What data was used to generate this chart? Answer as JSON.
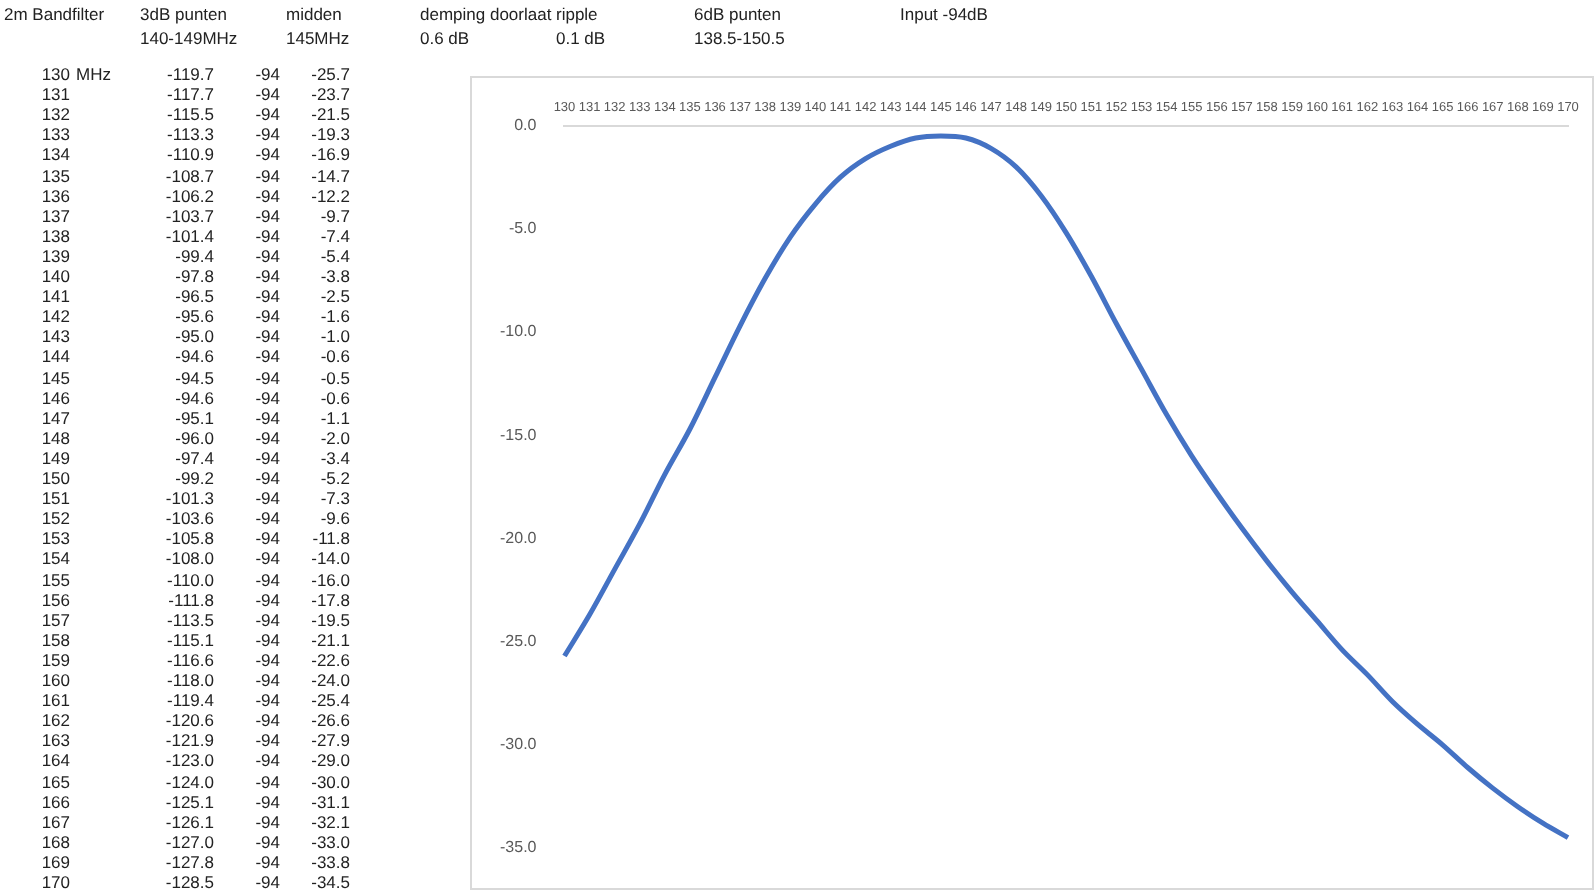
{
  "chart_data": {
    "type": "line",
    "categories": [
      "130",
      "131",
      "132",
      "133",
      "134",
      "135",
      "136",
      "137",
      "138",
      "139",
      "140",
      "141",
      "142",
      "143",
      "144",
      "145",
      "146",
      "147",
      "148",
      "149",
      "150",
      "151",
      "152",
      "153",
      "154",
      "155",
      "156",
      "157",
      "158",
      "159",
      "160",
      "161",
      "162",
      "163",
      "164",
      "165",
      "166",
      "167",
      "168",
      "169",
      "170"
    ],
    "values": [
      -25.7,
      -23.7,
      -21.5,
      -19.3,
      -16.9,
      -14.7,
      -12.2,
      -9.7,
      -7.4,
      -5.4,
      -3.8,
      -2.5,
      -1.6,
      -1.0,
      -0.6,
      -0.5,
      -0.6,
      -1.1,
      -2.0,
      -3.4,
      -5.2,
      -7.3,
      -9.6,
      -11.8,
      -14.0,
      -16.0,
      -17.8,
      -19.5,
      -21.1,
      -22.6,
      -24.0,
      -25.4,
      -26.6,
      -27.9,
      -29.0,
      -30.0,
      -31.1,
      -32.1,
      -33.0,
      -33.8,
      -34.5
    ],
    "color": "#4472c4",
    "ylim": [
      -35,
      0
    ],
    "yticks": [
      {
        "value": 0,
        "label": "0.0"
      },
      {
        "value": -5,
        "label": "-5.0"
      },
      {
        "value": -10,
        "label": "-10.0"
      },
      {
        "value": -15,
        "label": "-15.0"
      },
      {
        "value": -20,
        "label": "-20.0"
      },
      {
        "value": -25,
        "label": "-25.0"
      },
      {
        "value": -30,
        "label": "-30.0"
      },
      {
        "value": -35,
        "label": "-35.0"
      }
    ],
    "grid": false,
    "annotations": [
      "2m Bandfilter",
      "3dB punten",
      "140-149MHz",
      "midden",
      "145MHz",
      "demping doorlaat",
      "0.6 dB",
      "ripple",
      "0.1 dB",
      "6dB punten",
      "138.5-150.5",
      "Input -94dB",
      "MHz",
      "-119.7",
      "-117.7",
      "-115.5",
      "-113.3",
      "-110.9",
      "-108.7",
      "-106.2",
      "-103.7",
      "-101.4",
      "-99.4",
      "-97.8",
      "-96.5",
      "-95.6",
      "-95.0",
      "-94.6",
      "-94.5",
      "-94.6",
      "-95.1",
      "-96.0",
      "-97.4",
      "-99.2",
      "-101.3",
      "-103.6",
      "-105.8",
      "-108.0",
      "-110.0",
      "-111.8",
      "-113.5",
      "-115.1",
      "-116.6",
      "-118.0",
      "-119.4",
      "-120.6",
      "-121.9",
      "-123.0",
      "-124.0",
      "-125.1",
      "-126.1",
      "-127.0",
      "-127.8",
      "-128.5",
      "-94",
      "-94",
      "-94",
      "-94",
      "-94",
      "-94",
      "-94",
      "-94",
      "-94",
      "-94",
      "-94",
      "-94",
      "-94",
      "-94",
      "-94",
      "-94",
      "-94",
      "-94",
      "-94",
      "-94",
      "-94",
      "-94",
      "-94",
      "-94",
      "-94",
      "-94",
      "-94",
      "-94",
      "-94",
      "-94",
      "-94",
      "-94",
      "-94",
      "-94",
      "-94",
      "-94",
      "-94",
      "-94",
      "-94",
      "-94",
      "-94",
      "-25.7",
      "-23.7",
      "-21.5",
      "-19.3",
      "-16.9",
      "-14.7",
      "-12.2",
      "-9.7",
      "-7.4",
      "-5.4",
      "-3.8",
      "-2.5",
      "-1.6",
      "-1.0",
      "-0.6",
      "-0.5",
      "-0.6",
      "-1.1",
      "-2.0",
      "-3.4",
      "-5.2",
      "-7.3",
      "-9.6",
      "-11.8",
      "-14.0",
      "-16.0",
      "-17.8",
      "-19.5",
      "-21.1",
      "-22.6",
      "-24.0",
      "-25.4",
      "-26.6",
      "-27.9",
      "-29.0",
      "-30.0",
      "-31.1",
      "-32.1",
      "-33.0",
      "-33.8",
      "-34.5"
    ]
  }
}
